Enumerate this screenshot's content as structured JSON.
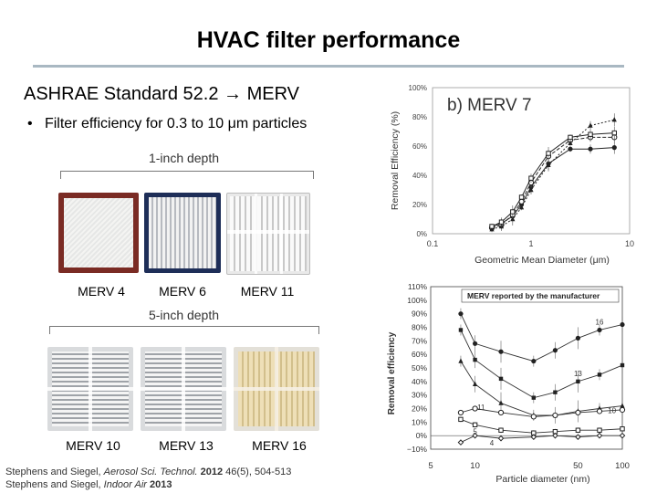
{
  "slide": {
    "title": "HVAC filter performance",
    "subtitle": "ASHRAE Standard 52.2 → MERV",
    "bullet_marker": "•",
    "bullet": "Filter efficiency for 0.3 to 10 μm particles"
  },
  "one_inch": {
    "caption": "1-inch depth",
    "labels": [
      "MERV 4",
      "MERV 6",
      "MERV 11"
    ]
  },
  "five_inch": {
    "caption": "5-inch depth",
    "labels": [
      "MERV 10",
      "MERV 13",
      "MERV 16"
    ]
  },
  "citation": {
    "line1_prefix": "Stephens and Siegel, ",
    "line1_journal": "Aerosol Sci. Technol.",
    "line1_year": " 2012",
    "line1_rest": " 46(5), 504-513",
    "line2_prefix": "Stephens and Siegel, ",
    "line2_journal": "Indoor Air",
    "line2_year": " 2013"
  },
  "chart_data": [
    {
      "type": "line",
      "title": "b) MERV 7",
      "xlabel": "Geometric Mean Diameter (μm)",
      "ylabel": "Removal Efficiency (%)",
      "xscale": "log",
      "xlim": [
        0.1,
        10
      ],
      "ylim": [
        0,
        100
      ],
      "x_ticks": [
        "0.1",
        "1",
        "10"
      ],
      "y_ticks": [
        "0%",
        "20%",
        "40%",
        "60%",
        "80%",
        "100%"
      ],
      "grid": false,
      "series": [
        {
          "name": "filled circles",
          "x": [
            0.4,
            0.5,
            0.65,
            0.8,
            1.0,
            1.5,
            2.5,
            4,
            7
          ],
          "y": [
            5,
            7,
            12,
            20,
            32,
            48,
            58,
            58,
            59
          ]
        },
        {
          "name": "open circles",
          "x": [
            0.4,
            0.5,
            0.65,
            0.8,
            1.0,
            1.5,
            2.5,
            4,
            7
          ],
          "y": [
            4,
            6,
            13,
            22,
            35,
            53,
            64,
            66,
            66
          ]
        },
        {
          "name": "filled triangles",
          "x": [
            0.4,
            0.5,
            0.65,
            0.8,
            1.0,
            1.5,
            2.5,
            4,
            7
          ],
          "y": [
            3,
            5,
            10,
            18,
            30,
            47,
            62,
            74,
            78
          ]
        },
        {
          "name": "open squares",
          "x": [
            0.4,
            0.5,
            0.65,
            0.8,
            1.0,
            1.5,
            2.5,
            4,
            7
          ],
          "y": [
            5,
            8,
            15,
            25,
            38,
            55,
            66,
            68,
            69
          ]
        }
      ]
    },
    {
      "type": "line",
      "title": "MERV reported by the manufacturer",
      "xlabel": "Particle diameter (nm)",
      "ylabel": "Removal efficiency",
      "xscale": "log",
      "xlim": [
        5,
        100
      ],
      "ylim": [
        -10,
        110
      ],
      "x_ticks": [
        "5",
        "10",
        "50",
        "100"
      ],
      "y_ticks": [
        "−10%",
        "0%",
        "10%",
        "20%",
        "30%",
        "40%",
        "50%",
        "60%",
        "70%",
        "80%",
        "90%",
        "100%",
        "110%"
      ],
      "grid": false,
      "series": [
        {
          "name": "16",
          "label": "16",
          "x": [
            8,
            10,
            15,
            25,
            35,
            50,
            70,
            100
          ],
          "y": [
            90,
            68,
            62,
            55,
            63,
            72,
            78,
            82
          ]
        },
        {
          "name": "13",
          "label": "13",
          "x": [
            8,
            10,
            15,
            25,
            35,
            50,
            70,
            100
          ],
          "y": [
            78,
            56,
            42,
            28,
            32,
            40,
            45,
            52
          ]
        },
        {
          "name": "10",
          "label": "10",
          "x": [
            8,
            10,
            15,
            25,
            35,
            50,
            70,
            100
          ],
          "y": [
            55,
            38,
            24,
            15,
            15,
            18,
            20,
            22
          ]
        },
        {
          "name": "11",
          "label": "11",
          "x": [
            8,
            10,
            15,
            25,
            35,
            50,
            70,
            100
          ],
          "y": [
            17,
            20,
            17,
            14,
            15,
            17,
            18,
            19
          ]
        },
        {
          "name": "5",
          "label": "5",
          "x": [
            8,
            10,
            15,
            25,
            35,
            50,
            70,
            100
          ],
          "y": [
            12,
            8,
            4,
            2,
            3,
            4,
            4,
            5
          ]
        },
        {
          "name": "4",
          "label": "4",
          "x": [
            8,
            10,
            15,
            25,
            35,
            50,
            70,
            100
          ],
          "y": [
            -5,
            0,
            -2,
            -1,
            0,
            -1,
            0,
            0
          ]
        }
      ]
    }
  ]
}
